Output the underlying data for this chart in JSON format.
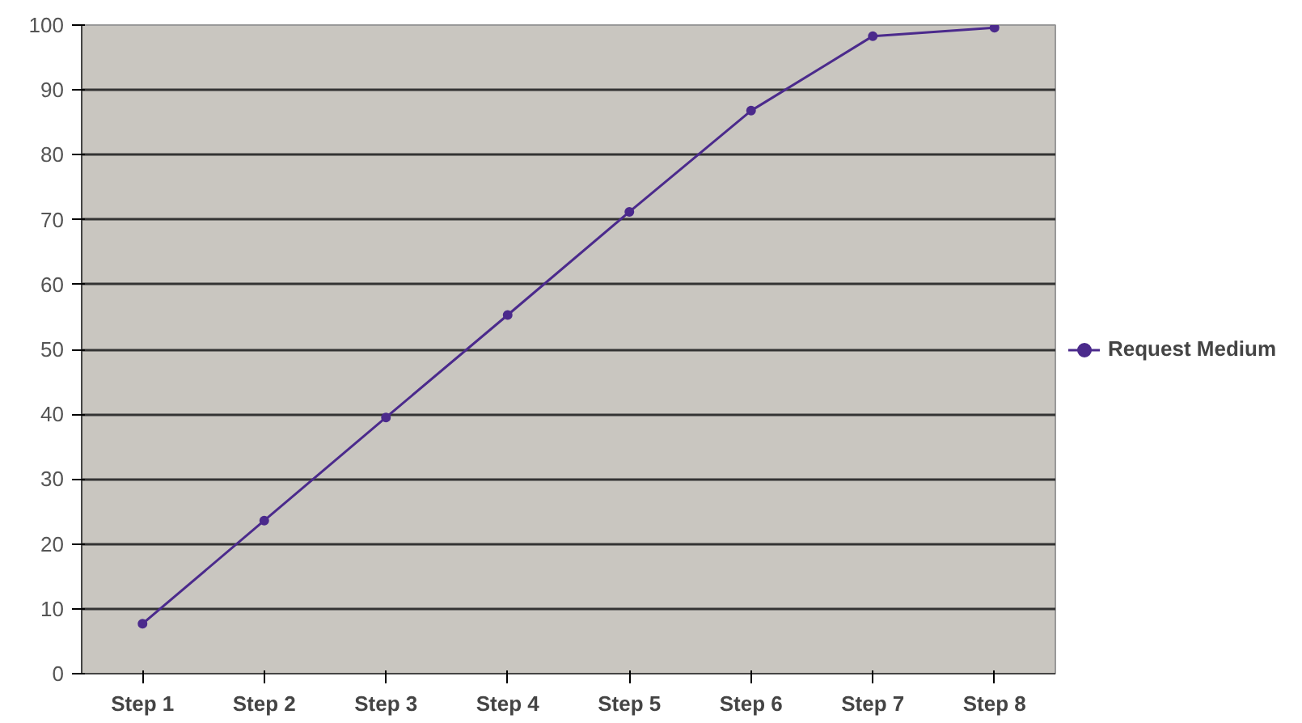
{
  "chart_data": {
    "type": "line",
    "categories": [
      "Step 1",
      "Step 2",
      "Step 3",
      "Step 4",
      "Step 5",
      "Step 6",
      "Step 7",
      "Step 8"
    ],
    "series": [
      {
        "name": "Request Medium",
        "color": "#4b2a8c",
        "values": [
          7.7,
          23.6,
          39.5,
          55.3,
          71.2,
          86.8,
          98.3,
          99.6
        ]
      }
    ],
    "ylim": [
      0,
      100
    ],
    "yticks": [
      0,
      10,
      20,
      30,
      40,
      50,
      60,
      70,
      80,
      90,
      100
    ],
    "grid": "y",
    "legend": "right",
    "marker": "circle",
    "line_style": "solid"
  }
}
